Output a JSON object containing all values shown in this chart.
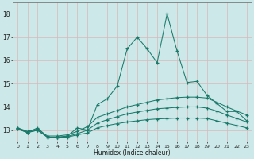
{
  "xlabel": "Humidex (Indice chaleur)",
  "x": [
    0,
    1,
    2,
    3,
    4,
    5,
    6,
    7,
    8,
    9,
    10,
    11,
    12,
    13,
    14,
    15,
    16,
    17,
    18,
    19,
    20,
    21,
    22,
    23
  ],
  "line1": [
    13.1,
    12.9,
    13.1,
    12.7,
    12.7,
    12.75,
    13.1,
    13.0,
    14.1,
    14.35,
    14.9,
    16.5,
    17.0,
    16.5,
    15.9,
    18.0,
    16.4,
    15.05,
    15.1,
    14.5,
    14.15,
    13.8,
    13.8,
    13.4
  ],
  "line2": [
    13.1,
    12.95,
    13.05,
    12.75,
    12.75,
    12.8,
    12.95,
    13.15,
    13.55,
    13.7,
    13.85,
    14.0,
    14.1,
    14.2,
    14.3,
    14.35,
    14.4,
    14.42,
    14.42,
    14.38,
    14.2,
    14.0,
    13.82,
    13.65
  ],
  "line3": [
    13.05,
    12.9,
    13.0,
    12.7,
    12.7,
    12.73,
    12.85,
    13.0,
    13.3,
    13.45,
    13.58,
    13.7,
    13.78,
    13.85,
    13.92,
    13.95,
    13.98,
    14.0,
    14.0,
    13.95,
    13.82,
    13.65,
    13.5,
    13.35
  ],
  "line4": [
    13.05,
    12.9,
    13.0,
    12.7,
    12.7,
    12.7,
    12.8,
    12.88,
    13.1,
    13.2,
    13.28,
    13.35,
    13.4,
    13.45,
    13.48,
    13.5,
    13.52,
    13.52,
    13.52,
    13.5,
    13.4,
    13.3,
    13.2,
    13.1
  ],
  "line_color": "#1a7a6a",
  "bg_color": "#cce8e8",
  "grid_color": "#b8d8d8",
  "ylim": [
    12.5,
    18.5
  ],
  "xlim": [
    -0.5,
    23.5
  ],
  "yticks": [
    13,
    14,
    15,
    16,
    17,
    18
  ],
  "xticks": [
    0,
    1,
    2,
    3,
    4,
    5,
    6,
    7,
    8,
    9,
    10,
    11,
    12,
    13,
    14,
    15,
    16,
    17,
    18,
    19,
    20,
    21,
    22,
    23
  ]
}
